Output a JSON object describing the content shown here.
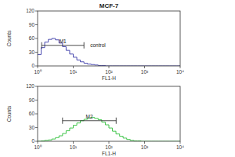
{
  "chart_data": [
    {
      "type": "histogram",
      "title": "MCF-7",
      "x_label": "FL1-H",
      "y_label": "Counts",
      "log": "x",
      "grid": false,
      "color": "#3a3aa8",
      "bins": [
        1,
        1.26,
        1.58,
        2,
        2.51,
        3.16,
        3.98,
        5.01,
        6.31,
        7.94,
        10,
        12.6,
        15.8,
        20,
        25.1,
        31.6,
        39.8,
        50.1,
        63.1,
        79.4,
        100,
        126,
        158,
        200,
        251,
        316,
        398,
        501,
        631,
        794,
        1000,
        1260,
        1580,
        2000,
        2510,
        3160,
        3980,
        5010,
        6310,
        7940,
        10000
      ],
      "counts": [
        25,
        40,
        52,
        58,
        60,
        57,
        50,
        42,
        34,
        26,
        19,
        13,
        9,
        6,
        4,
        3,
        2,
        1,
        1,
        0,
        0,
        0,
        0,
        0,
        0,
        0,
        0,
        0,
        0,
        0,
        0,
        0,
        0,
        0,
        0,
        0,
        0,
        0,
        0,
        0
      ],
      "xlim": [
        1,
        10000
      ],
      "xticks": [
        {
          "value": 1,
          "label": "10⁰"
        },
        {
          "value": 10,
          "label": "10¹"
        },
        {
          "value": 100,
          "label": "10²"
        },
        {
          "value": 1000,
          "label": "10³"
        },
        {
          "value": 10000,
          "label": "10⁴"
        }
      ],
      "ylim": [
        0,
        120
      ],
      "yticks": [
        0,
        30,
        60,
        90,
        120
      ],
      "annotations": [
        {
          "text": "M1",
          "x": [
            1.3,
            20
          ],
          "y": 45
        },
        {
          "text": "control",
          "x": 30,
          "y": 45
        }
      ]
    },
    {
      "type": "histogram",
      "x_label": "FL1-H",
      "y_label": "Counts",
      "log": "x",
      "grid": false,
      "color": "#2fbf3a",
      "bins": [
        1,
        1.26,
        1.58,
        2,
        2.51,
        3.16,
        3.98,
        5.01,
        6.31,
        7.94,
        10,
        12.6,
        15.8,
        20,
        25.1,
        31.6,
        39.8,
        50.1,
        63.1,
        79.4,
        100,
        126,
        158,
        200,
        251,
        316,
        398,
        501,
        631,
        794,
        1000,
        1260,
        1580,
        2000,
        2510,
        3160,
        3980,
        5010,
        6310,
        7940,
        10000
      ],
      "counts": [
        0,
        1,
        2,
        3,
        5,
        8,
        12,
        17,
        23,
        29,
        35,
        40,
        45,
        48,
        51,
        52,
        50,
        47,
        42,
        36,
        29,
        22,
        16,
        11,
        7,
        4,
        2,
        1,
        1,
        0,
        0,
        0,
        0,
        0,
        0,
        0,
        0,
        0,
        0,
        0
      ],
      "xlim": [
        1,
        10000
      ],
      "xticks": [
        {
          "value": 1,
          "label": "10⁰"
        },
        {
          "value": 10,
          "label": "10¹"
        },
        {
          "value": 100,
          "label": "10²"
        },
        {
          "value": 1000,
          "label": "10³"
        },
        {
          "value": 10000,
          "label": "10⁴"
        }
      ],
      "ylim": [
        0,
        120
      ],
      "yticks": [
        0,
        30,
        60,
        90,
        120
      ],
      "annotations": [
        {
          "text": "M2",
          "x": [
            5,
            160
          ],
          "y": 45
        }
      ]
    }
  ]
}
